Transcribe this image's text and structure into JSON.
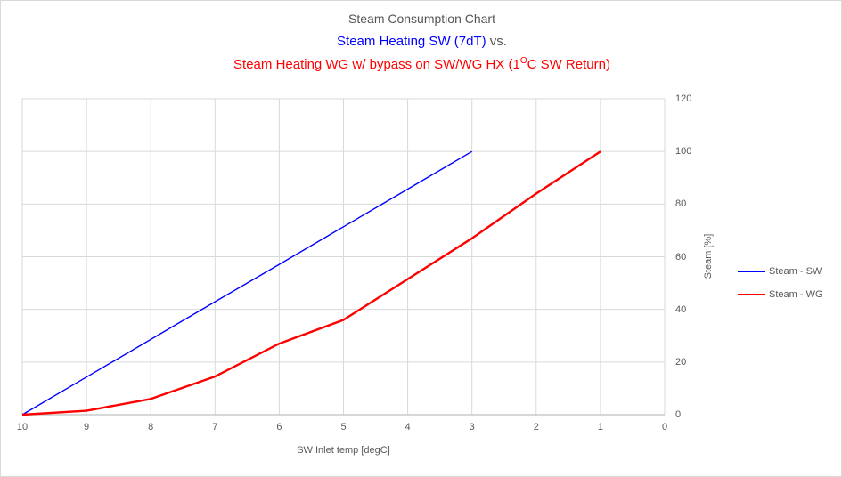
{
  "titles": {
    "line1": "Steam Consumption Chart",
    "line2_blue": "Steam Heating SW (7dT)",
    "line2_suffix": " vs.",
    "line3_prefix": "Steam Heating WG w/ bypass on SW/WG HX (1",
    "line3_sup": "O",
    "line3_suffix": "C SW Return)"
  },
  "colors": {
    "series_sw": "#0000ff",
    "series_wg": "#ff0000",
    "gridline": "#d9d9d9",
    "axis_line": "#bfbfbf",
    "tick_text": "#595959",
    "title_text": "#555555",
    "chart_border": "#d9d9d9"
  },
  "chart_data": {
    "type": "line",
    "title": "Steam Consumption Chart",
    "subtitle_blue": "Steam Heating SW (7dT) vs.",
    "subtitle_red": "Steam Heating WG w/ bypass on SW/WG HX (1°C SW Return)",
    "xlabel": "SW Inlet temp [degC]",
    "ylabel": "Steam [%]",
    "x_axis": {
      "min": 0,
      "max": 10,
      "reversed": true,
      "ticks": [
        10,
        9,
        8,
        7,
        6,
        5,
        4,
        3,
        2,
        1,
        0
      ]
    },
    "y_axis": {
      "min": 0,
      "max": 120,
      "ticks": [
        0,
        20,
        40,
        60,
        80,
        100,
        120
      ],
      "labels_side": "right"
    },
    "grid": true,
    "legend_position": "right",
    "series": [
      {
        "name": "Steam - SW",
        "color": "#0000ff",
        "x": [
          10,
          9,
          8,
          7,
          6,
          5,
          4,
          3
        ],
        "y": [
          0,
          14.3,
          28.6,
          42.9,
          57.1,
          71.4,
          85.7,
          100
        ]
      },
      {
        "name": "Steam - WG",
        "color": "#ff0000",
        "x": [
          10,
          9,
          8,
          7,
          6,
          5,
          4,
          3,
          2,
          1
        ],
        "y": [
          0,
          1.5,
          6,
          14.5,
          27,
          36,
          51.5,
          67,
          84,
          100
        ]
      }
    ]
  }
}
